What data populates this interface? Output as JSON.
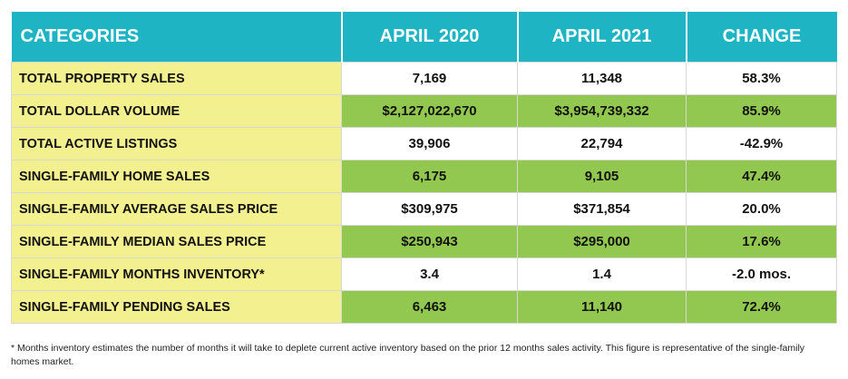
{
  "table": {
    "headers": [
      "CATEGORIES",
      "APRIL 2020",
      "APRIL 2021",
      "CHANGE"
    ],
    "rows": [
      {
        "category": "TOTAL PROPERTY SALES",
        "april_2020": "7,169",
        "april_2021": "11,348",
        "change": "58.3%"
      },
      {
        "category": "TOTAL DOLLAR VOLUME",
        "april_2020": "$2,127,022,670",
        "april_2021": "$3,954,739,332",
        "change": "85.9%"
      },
      {
        "category": "TOTAL ACTIVE LISTINGS",
        "april_2020": "39,906",
        "april_2021": "22,794",
        "change": "-42.9%"
      },
      {
        "category": "SINGLE-FAMILY HOME SALES",
        "april_2020": "6,175",
        "april_2021": "9,105",
        "change": "47.4%"
      },
      {
        "category": "SINGLE-FAMILY AVERAGE SALES PRICE",
        "april_2020": "$309,975",
        "april_2021": "$371,854",
        "change": "20.0%"
      },
      {
        "category": "SINGLE-FAMILY MEDIAN SALES PRICE",
        "april_2020": "$250,943",
        "april_2021": "$295,000",
        "change": "17.6%"
      },
      {
        "category": "SINGLE-FAMILY MONTHS INVENTORY*",
        "april_2020": "3.4",
        "april_2021": "1.4",
        "change": "-2.0 mos."
      },
      {
        "category": "SINGLE-FAMILY PENDING SALES",
        "april_2020": "6,463",
        "april_2021": "11,140",
        "change": "72.4%"
      }
    ]
  },
  "colors": {
    "header_bg": "#1fb4c4",
    "category_bg": "#f3f08f",
    "shaded_row_bg": "#92c850"
  },
  "footnote": "* Months inventory estimates the number of months it will take to deplete current active inventory based on the prior 12 months sales activity. This figure is representative of the single-family homes market."
}
